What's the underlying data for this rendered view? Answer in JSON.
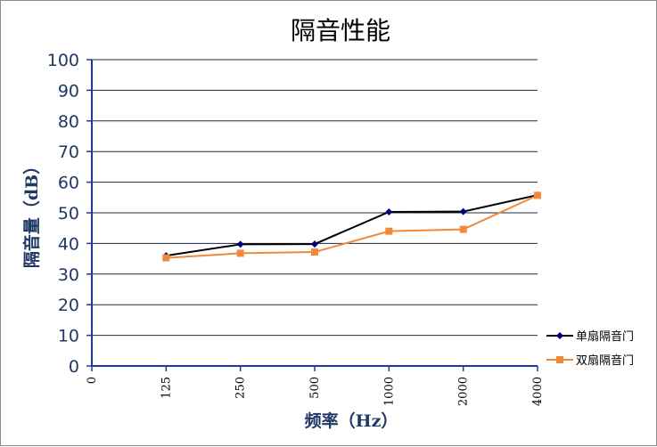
{
  "chart_data": {
    "type": "line",
    "title": "隔音性能",
    "xlabel": "频率（Hz）",
    "ylabel": "隔音量（dB）",
    "categories": [
      "0",
      "125",
      "250",
      "500",
      "1000",
      "2000",
      "4000"
    ],
    "ylim": [
      0,
      100
    ],
    "yticks": [
      "0",
      "10",
      "20",
      "30",
      "40",
      "50",
      "60",
      "70",
      "80",
      "90",
      "100"
    ],
    "grid": true,
    "legend_position": "right",
    "series": [
      {
        "name": "单扇隔音门",
        "color": "#000000",
        "marker_color": "#00007f",
        "marker": "diamond",
        "values": [
          null,
          36,
          39.7,
          39.8,
          50.3,
          50.4,
          55.8
        ]
      },
      {
        "name": "双扇隔音门",
        "color": "#f08a3a",
        "marker_color": "#f08a3a",
        "marker": "square",
        "values": [
          null,
          35.3,
          36.8,
          37.2,
          44,
          44.6,
          55.7
        ]
      }
    ]
  }
}
